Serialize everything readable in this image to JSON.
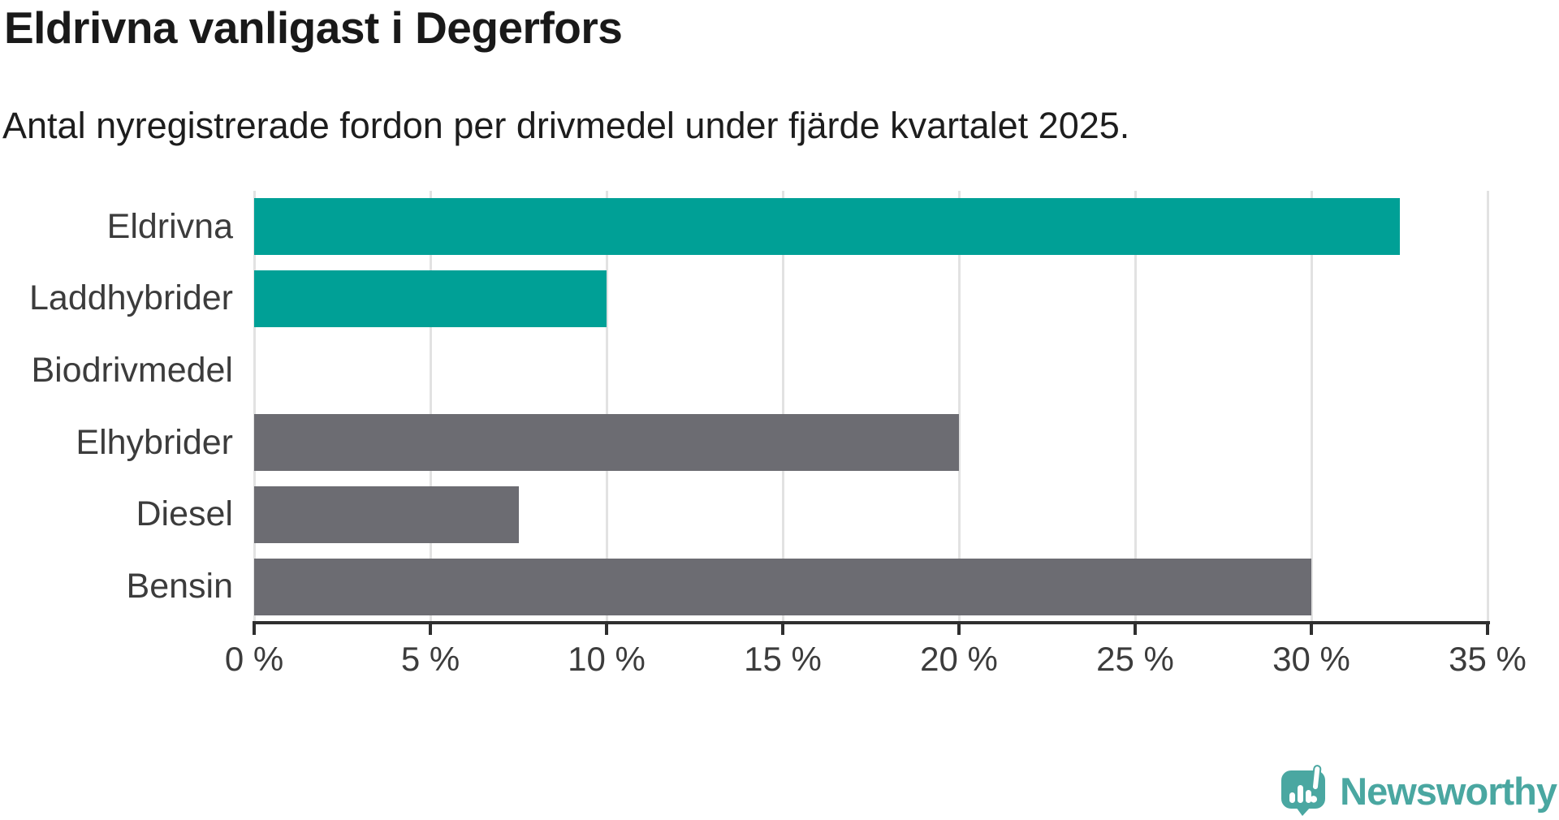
{
  "header": {
    "title": "Eldrivna vanligast i Degerfors",
    "subtitle": "Antal nyregistrerade fordon per drivmedel under fjärde kvartalet 2025."
  },
  "chart_data": {
    "type": "bar",
    "orientation": "horizontal",
    "title": "Eldrivna vanligast i Degerfors",
    "subtitle": "Antal nyregistrerade fordon per drivmedel under fjärde kvartalet 2025.",
    "categories": [
      "Eldrivna",
      "Laddhybrider",
      "Biodrivmedel",
      "Elhybrider",
      "Diesel",
      "Bensin"
    ],
    "values": [
      32.5,
      10,
      0,
      20,
      7.5,
      30
    ],
    "unit": "%",
    "bar_colors": [
      "#00a096",
      "#00a096",
      "#00a096",
      "#6c6c72",
      "#6c6c72",
      "#6c6c72"
    ],
    "highlight_color": "#00a096",
    "default_color": "#6c6c72",
    "xlim": [
      0,
      35
    ],
    "x_ticks": [
      0,
      5,
      10,
      15,
      20,
      25,
      30,
      35
    ],
    "x_tick_labels": [
      "0 %",
      "5 %",
      "10 %",
      "15 %",
      "20 %",
      "25 %",
      "30 %",
      "35 %"
    ],
    "grid": "vertical-on",
    "gridline_color": "#e2e2e2",
    "axis_color": "#2f2f2f",
    "legend": "none"
  },
  "footer": {
    "brand": "Newsworthy",
    "brand_color": "#4aa7a1"
  }
}
